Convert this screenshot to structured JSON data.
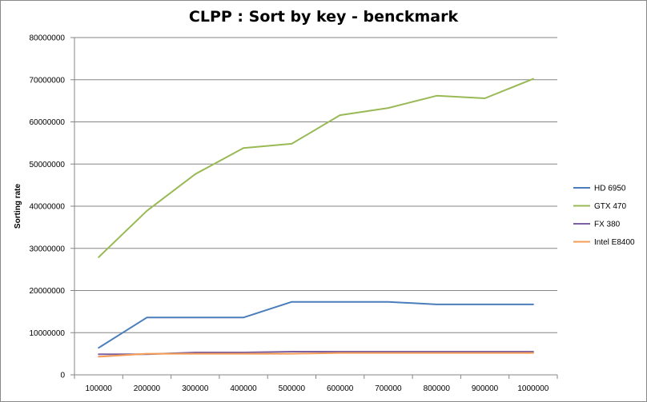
{
  "chart_data": {
    "type": "line",
    "title": "CLPP : Sort by key - benckmark",
    "xlabel": "",
    "ylabel": "Sorting rate",
    "x": [
      "100000",
      "200000",
      "300000",
      "400000",
      "500000",
      "600000",
      "700000",
      "800000",
      "900000",
      "1000000"
    ],
    "ylim": [
      0,
      80000000
    ],
    "yticks": [
      "0",
      "10000000",
      "20000000",
      "30000000",
      "40000000",
      "50000000",
      "60000000",
      "70000000",
      "80000000"
    ],
    "grid": true,
    "legend_position": "right",
    "series": [
      {
        "name": "HD 6950",
        "color": "#4a7ebb",
        "values": [
          6400000,
          13600000,
          13600000,
          13600000,
          17300000,
          17300000,
          17300000,
          16700000,
          16700000,
          16700000
        ]
      },
      {
        "name": "GTX 470",
        "color": "#98b954",
        "values": [
          27900000,
          38900000,
          47600000,
          53800000,
          54800000,
          61600000,
          63300000,
          66200000,
          65600000,
          70200000
        ]
      },
      {
        "name": "FX 380",
        "color": "#7d60a0",
        "values": [
          4900000,
          4900000,
          5300000,
          5300000,
          5500000,
          5500000,
          5500000,
          5500000,
          5500000,
          5500000
        ]
      },
      {
        "name": "Intel E8400",
        "color": "#f59d56",
        "values": [
          4300000,
          5000000,
          5000000,
          5000000,
          5000000,
          5200000,
          5200000,
          5200000,
          5200000,
          5200000
        ]
      }
    ]
  }
}
